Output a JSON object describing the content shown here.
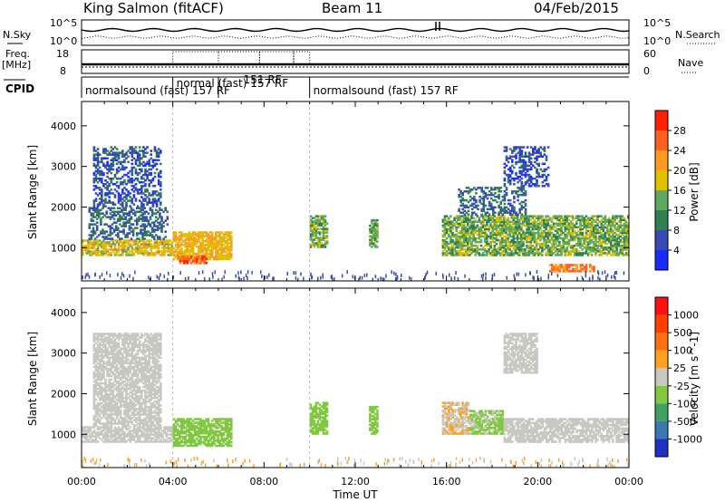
{
  "header": {
    "station": "King Salmon (fitACF)",
    "beam": "Beam 11",
    "date": "04/Feb/2015"
  },
  "top_panels": {
    "nsky_label": "N.Sky",
    "nsky_ticks": [
      "10^5",
      "10^0"
    ],
    "nsearch_label": "N.Search",
    "nsearch_ticks": [
      "10^5",
      "10^0"
    ],
    "freq_label": "Freq.",
    "freq_unit": "[MHz]",
    "freq_ticks": [
      "18",
      "8"
    ],
    "nave_label": "Nave",
    "nave_ticks": [
      "60",
      "0"
    ],
    "cpid_label": "CPID",
    "cpid_segments": [
      {
        "label": "normalsound (fast) 157 RF",
        "start": 0.0,
        "end": 4.0
      },
      {
        "label": "normal (fast) 157 RF",
        "start": 4.0,
        "end": 6.0
      },
      {
        "label": "151 RF",
        "start": 6.0,
        "end": 10.0
      },
      {
        "label": "normalsound (fast) 157 RF",
        "start": 10.0,
        "end": 24.0
      }
    ]
  },
  "chart_data": [
    {
      "type": "heatmap",
      "name": "power-panel",
      "ylabel": "Slant Range [km]",
      "ylim": [
        180,
        4600
      ],
      "xlim": [
        0,
        24
      ],
      "yticks": [
        "1000",
        "2000",
        "3000",
        "4000"
      ],
      "colorbar_label": "Power [dB]",
      "colorbar_ticks": [
        "4",
        "8",
        "12",
        "16",
        "20",
        "24",
        "28"
      ],
      "colorbar_colors": [
        "#1a2bff",
        "#3a4ab4",
        "#2f7f50",
        "#5fa860",
        "#e0c000",
        "#ff9a20",
        "#ff6020",
        "#ff2000"
      ],
      "colorbar_range": [
        0,
        32
      ],
      "regions": [
        {
          "t0": 0.0,
          "t1": 4.0,
          "r0": 800,
          "r1": 1200,
          "level": 18
        },
        {
          "t0": 0.3,
          "t1": 3.8,
          "r0": 1200,
          "r1": 2000,
          "level": 8
        },
        {
          "t0": 0.5,
          "t1": 3.5,
          "r0": 2000,
          "r1": 3500,
          "level": 6
        },
        {
          "t0": 4.0,
          "t1": 6.6,
          "r0": 700,
          "r1": 1400,
          "level": 20
        },
        {
          "t0": 4.2,
          "t1": 5.5,
          "r0": 600,
          "r1": 800,
          "level": 26
        },
        {
          "t0": 10.0,
          "t1": 10.8,
          "r0": 1000,
          "r1": 1800,
          "level": 14
        },
        {
          "t0": 12.6,
          "t1": 13.0,
          "r0": 1000,
          "r1": 1700,
          "level": 14
        },
        {
          "t0": 15.8,
          "t1": 24.0,
          "r0": 800,
          "r1": 1800,
          "level": 14
        },
        {
          "t0": 16.5,
          "t1": 19.5,
          "r0": 1800,
          "r1": 2500,
          "level": 8
        },
        {
          "t0": 18.5,
          "t1": 20.5,
          "r0": 2500,
          "r1": 3500,
          "level": 6
        },
        {
          "t0": 20.5,
          "t1": 22.5,
          "r0": 400,
          "r1": 600,
          "level": 24
        }
      ]
    },
    {
      "type": "heatmap",
      "name": "velocity-panel",
      "ylabel": "Slant Range [km]",
      "ylim": [
        180,
        4600
      ],
      "xlim": [
        0,
        24
      ],
      "yticks": [
        "1000",
        "2000",
        "3000",
        "4000"
      ],
      "xticks": [
        "00:00",
        "04:00",
        "08:00",
        "12:00",
        "16:00",
        "20:00",
        "00:00"
      ],
      "xlabel": "Time UT",
      "colorbar_label": "Velocity [m s^-1]",
      "colorbar_ticks": [
        "1000",
        "500",
        "100",
        "25",
        "-25",
        "-100",
        "-500",
        "-1000"
      ],
      "colorbar_colors": [
        "#2030c0",
        "#3a7ab0",
        "#40a060",
        "#80c840",
        "#c8c8c0",
        "#ffa020",
        "#ff7010",
        "#ff4000",
        "#ff1010"
      ],
      "colorbar_range": [
        -1500,
        1500
      ],
      "regions": [
        {
          "t0": 0.0,
          "t1": 4.0,
          "r0": 800,
          "r1": 1200,
          "level": 0
        },
        {
          "t0": 0.5,
          "t1": 3.5,
          "r0": 1200,
          "r1": 3500,
          "level": -60
        },
        {
          "t0": 4.0,
          "t1": 6.6,
          "r0": 700,
          "r1": 1400,
          "level": -300
        },
        {
          "t0": 10.0,
          "t1": 10.8,
          "r0": 1000,
          "r1": 1800,
          "level": -300
        },
        {
          "t0": 12.6,
          "t1": 13.0,
          "r0": 1000,
          "r1": 1700,
          "level": -300
        },
        {
          "t0": 15.8,
          "t1": 17.0,
          "r0": 1000,
          "r1": 1800,
          "level": 150
        },
        {
          "t0": 17.0,
          "t1": 18.5,
          "r0": 1000,
          "r1": 1600,
          "level": -200
        },
        {
          "t0": 18.5,
          "t1": 24.0,
          "r0": 800,
          "r1": 1400,
          "level": 0
        },
        {
          "t0": 18.5,
          "t1": 20.0,
          "r0": 2500,
          "r1": 3500,
          "level": -80
        }
      ]
    }
  ]
}
